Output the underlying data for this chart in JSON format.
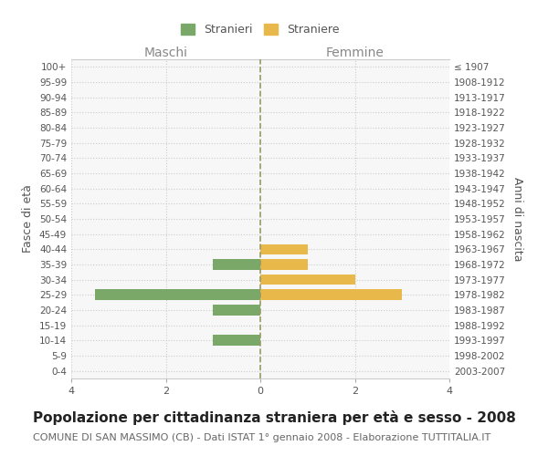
{
  "age_groups": [
    "100+",
    "95-99",
    "90-94",
    "85-89",
    "80-84",
    "75-79",
    "70-74",
    "65-69",
    "60-64",
    "55-59",
    "50-54",
    "45-49",
    "40-44",
    "35-39",
    "30-34",
    "25-29",
    "20-24",
    "15-19",
    "10-14",
    "5-9",
    "0-4"
  ],
  "birth_years": [
    "≤ 1907",
    "1908-1912",
    "1913-1917",
    "1918-1922",
    "1923-1927",
    "1928-1932",
    "1933-1937",
    "1938-1942",
    "1943-1947",
    "1948-1952",
    "1953-1957",
    "1958-1962",
    "1963-1967",
    "1968-1972",
    "1973-1977",
    "1978-1982",
    "1983-1987",
    "1988-1992",
    "1993-1997",
    "1998-2002",
    "2003-2007"
  ],
  "maschi": [
    0,
    0,
    0,
    0,
    0,
    0,
    0,
    0,
    0,
    0,
    0,
    0,
    0,
    1,
    0,
    3.5,
    1,
    0,
    1,
    0,
    0
  ],
  "femmine": [
    0,
    0,
    0,
    0,
    0,
    0,
    0,
    0,
    0,
    0,
    0,
    0,
    1,
    1,
    2,
    3,
    0,
    0,
    0,
    0,
    0
  ],
  "maschi_color": "#7aa868",
  "femmine_color": "#e8b84b",
  "title": "Popolazione per cittadinanza straniera per età e sesso - 2008",
  "subtitle": "COMUNE DI SAN MASSIMO (CB) - Dati ISTAT 1° gennaio 2008 - Elaborazione TUTTITALIA.IT",
  "ylabel_left": "Fasce di età",
  "ylabel_right": "Anni di nascita",
  "xlabel_left": "Maschi",
  "xlabel_right": "Femmine",
  "xlim": 4,
  "legend_stranieri": "Stranieri",
  "legend_straniere": "Straniere",
  "bg_color": "#ffffff",
  "plot_bg_color": "#f7f7f7",
  "grid_color": "#cccccc",
  "bar_height": 0.7,
  "title_fontsize": 11,
  "subtitle_fontsize": 8
}
